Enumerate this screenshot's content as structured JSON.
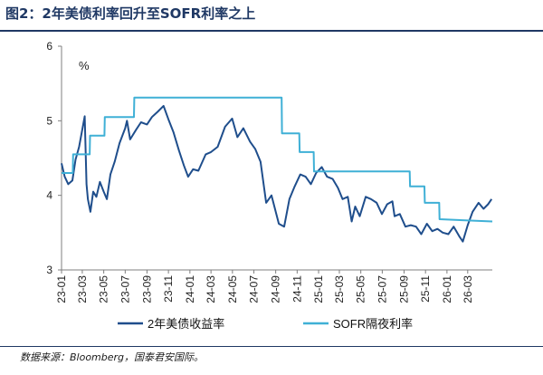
{
  "figure": {
    "title": "图2：2年美债利率回升至SOFR利率之上",
    "source": "数据来源：Bloomberg，国泰君安国际。"
  },
  "chart_data": {
    "type": "line",
    "ylabel": "%",
    "ylim": [
      3,
      6
    ],
    "yticks": [
      3,
      4,
      5,
      6
    ],
    "x_start": "2023-01-01",
    "x_end": "2026-05-10",
    "xticks": [
      "23-01",
      "23-03",
      "23-05",
      "23-07",
      "23-09",
      "23-11",
      "24-01",
      "24-03",
      "24-05",
      "24-07",
      "24-09",
      "24-11",
      "25-01",
      "25-03",
      "25-05",
      "25-07",
      "25-09",
      "25-11",
      "26-01",
      "26-03"
    ],
    "legend": {
      "position": "bottom"
    },
    "series": [
      {
        "name": "2年美债收益率",
        "color": "#1f4e8c",
        "points": [
          [
            "2023-01-01",
            4.43
          ],
          [
            "2023-01-10",
            4.25
          ],
          [
            "2023-01-20",
            4.15
          ],
          [
            "2023-02-01",
            4.2
          ],
          [
            "2023-02-10",
            4.48
          ],
          [
            "2023-02-20",
            4.65
          ],
          [
            "2023-03-01",
            4.88
          ],
          [
            "2023-03-08",
            5.06
          ],
          [
            "2023-03-13",
            4.15
          ],
          [
            "2023-03-17",
            3.95
          ],
          [
            "2023-03-24",
            3.78
          ],
          [
            "2023-04-01",
            4.05
          ],
          [
            "2023-04-10",
            3.98
          ],
          [
            "2023-04-20",
            4.18
          ],
          [
            "2023-05-01",
            4.05
          ],
          [
            "2023-05-10",
            3.95
          ],
          [
            "2023-05-20",
            4.28
          ],
          [
            "2023-06-01",
            4.45
          ],
          [
            "2023-06-15",
            4.7
          ],
          [
            "2023-07-01",
            4.9
          ],
          [
            "2023-07-06",
            5.0
          ],
          [
            "2023-07-15",
            4.75
          ],
          [
            "2023-08-01",
            4.88
          ],
          [
            "2023-08-15",
            4.98
          ],
          [
            "2023-09-01",
            4.95
          ],
          [
            "2023-09-15",
            5.05
          ],
          [
            "2023-10-01",
            5.12
          ],
          [
            "2023-10-18",
            5.2
          ],
          [
            "2023-11-01",
            5.02
          ],
          [
            "2023-11-15",
            4.85
          ],
          [
            "2023-12-01",
            4.6
          ],
          [
            "2023-12-15",
            4.4
          ],
          [
            "2023-12-27",
            4.25
          ],
          [
            "2024-01-10",
            4.35
          ],
          [
            "2024-01-25",
            4.33
          ],
          [
            "2024-02-15",
            4.55
          ],
          [
            "2024-03-01",
            4.58
          ],
          [
            "2024-03-20",
            4.65
          ],
          [
            "2024-04-10",
            4.92
          ],
          [
            "2024-04-30",
            5.03
          ],
          [
            "2024-05-15",
            4.78
          ],
          [
            "2024-06-01",
            4.9
          ],
          [
            "2024-06-20",
            4.72
          ],
          [
            "2024-07-05",
            4.62
          ],
          [
            "2024-07-20",
            4.45
          ],
          [
            "2024-08-05",
            3.9
          ],
          [
            "2024-08-20",
            4.0
          ],
          [
            "2024-09-10",
            3.62
          ],
          [
            "2024-09-25",
            3.58
          ],
          [
            "2024-10-10",
            3.95
          ],
          [
            "2024-10-25",
            4.12
          ],
          [
            "2024-11-10",
            4.28
          ],
          [
            "2024-11-25",
            4.25
          ],
          [
            "2024-12-10",
            4.15
          ],
          [
            "2024-12-25",
            4.3
          ],
          [
            "2025-01-10",
            4.38
          ],
          [
            "2025-01-25",
            4.25
          ],
          [
            "2025-02-10",
            4.22
          ],
          [
            "2025-02-25",
            4.1
          ],
          [
            "2025-03-10",
            3.95
          ],
          [
            "2025-03-25",
            3.98
          ],
          [
            "2025-04-05",
            3.65
          ],
          [
            "2025-04-15",
            3.85
          ],
          [
            "2025-04-28",
            3.72
          ],
          [
            "2025-05-15",
            3.98
          ],
          [
            "2025-05-30",
            3.95
          ],
          [
            "2025-06-15",
            3.9
          ],
          [
            "2025-06-30",
            3.75
          ],
          [
            "2025-07-15",
            3.88
          ],
          [
            "2025-07-30",
            3.92
          ],
          [
            "2025-08-05",
            3.72
          ],
          [
            "2025-08-20",
            3.75
          ],
          [
            "2025-09-05",
            3.58
          ],
          [
            "2025-09-20",
            3.6
          ],
          [
            "2025-10-05",
            3.58
          ],
          [
            "2025-10-20",
            3.48
          ],
          [
            "2025-11-05",
            3.62
          ],
          [
            "2025-11-20",
            3.52
          ],
          [
            "2025-12-05",
            3.55
          ],
          [
            "2025-12-20",
            3.5
          ],
          [
            "2026-01-05",
            3.48
          ],
          [
            "2026-01-20",
            3.58
          ],
          [
            "2026-02-05",
            3.45
          ],
          [
            "2026-02-15",
            3.38
          ],
          [
            "2026-03-01",
            3.6
          ],
          [
            "2026-03-15",
            3.78
          ],
          [
            "2026-04-01",
            3.9
          ],
          [
            "2026-04-15",
            3.82
          ],
          [
            "2026-04-28",
            3.88
          ],
          [
            "2026-05-08",
            3.95
          ]
        ]
      },
      {
        "name": "SOFR隔夜利率",
        "color": "#3fb0d6",
        "points": [
          [
            "2023-01-01",
            4.3
          ],
          [
            "2023-02-02",
            4.3
          ],
          [
            "2023-02-03",
            4.55
          ],
          [
            "2023-03-22",
            4.55
          ],
          [
            "2023-03-23",
            4.8
          ],
          [
            "2023-05-03",
            4.8
          ],
          [
            "2023-05-04",
            5.05
          ],
          [
            "2023-07-26",
            5.05
          ],
          [
            "2023-07-27",
            5.31
          ],
          [
            "2024-09-18",
            5.31
          ],
          [
            "2024-09-19",
            4.83
          ],
          [
            "2024-11-07",
            4.83
          ],
          [
            "2024-11-08",
            4.58
          ],
          [
            "2024-12-18",
            4.58
          ],
          [
            "2024-12-19",
            4.32
          ],
          [
            "2025-09-17",
            4.32
          ],
          [
            "2025-09-18",
            4.12
          ],
          [
            "2025-10-29",
            4.12
          ],
          [
            "2025-10-30",
            3.9
          ],
          [
            "2025-12-10",
            3.9
          ],
          [
            "2025-12-11",
            3.68
          ],
          [
            "2026-05-10",
            3.65
          ]
        ]
      }
    ]
  }
}
